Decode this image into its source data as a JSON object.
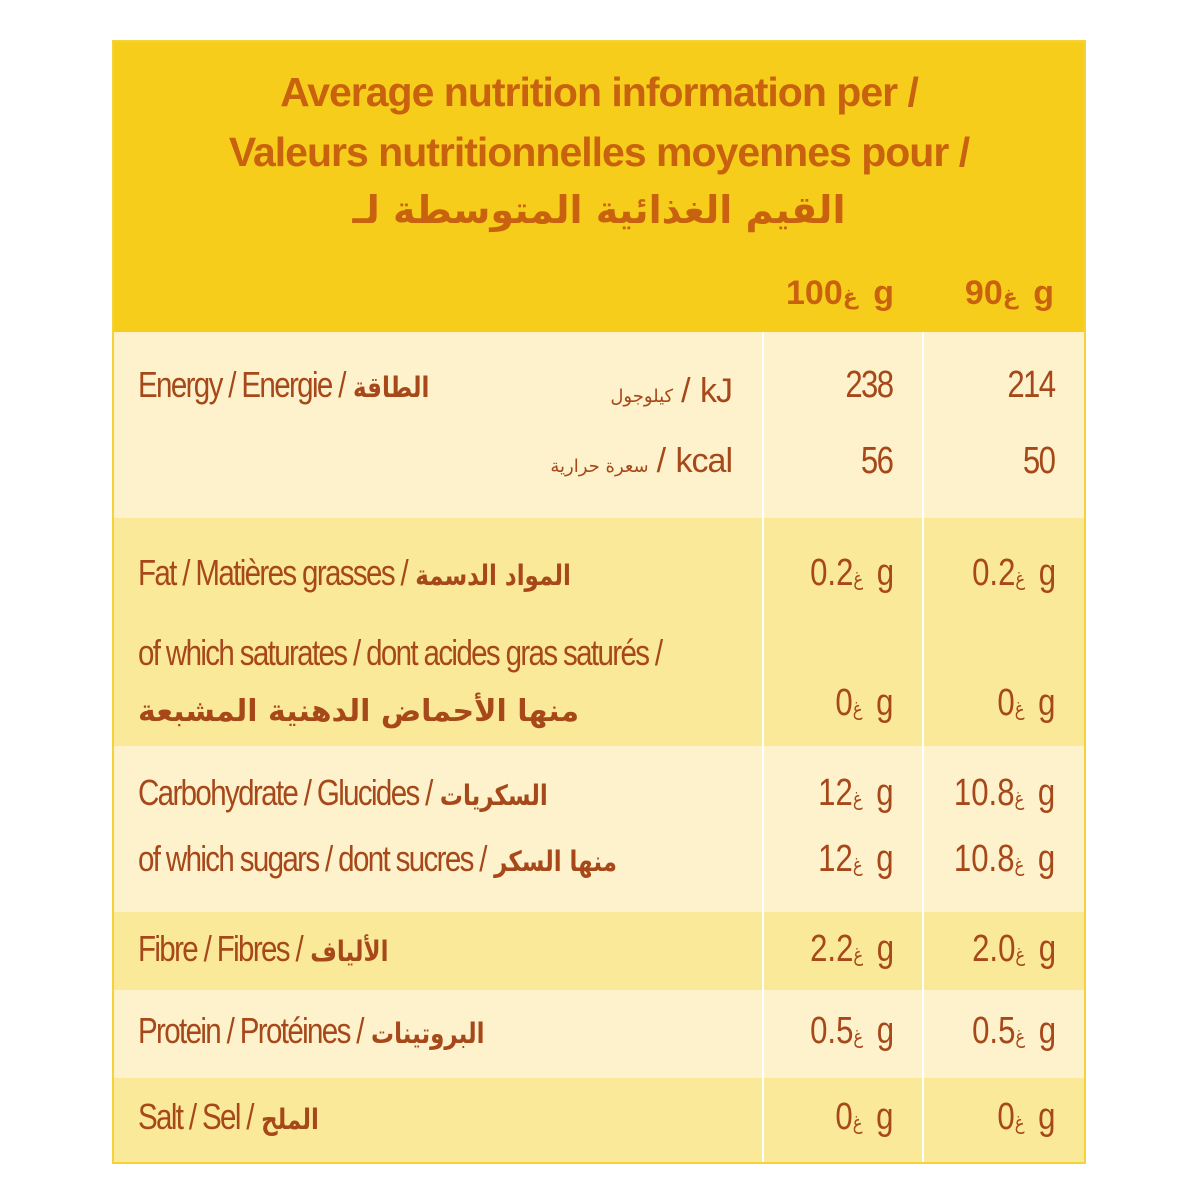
{
  "header": {
    "title_en": "Average nutrition information per /",
    "title_fr": "Valeurs nutritionnelles moyennes  pour /",
    "title_ar": "القيم الغذائية المتوسطة لـ",
    "col1": {
      "value": "100 g",
      "ar": "غ"
    },
    "col2": {
      "value": "90 g",
      "ar": "غ"
    }
  },
  "rows": {
    "energy": {
      "label": "Energy / Energie /",
      "label_ar": "الطاقة",
      "kj_unit": "/ kJ",
      "kj_unit_ar": "كيلوجول",
      "kcal_unit": "/ kcal",
      "kcal_unit_ar": "سعرة حرارية",
      "kj_100": "238",
      "kj_90": "214",
      "kcal_100": "56",
      "kcal_90": "50"
    },
    "fat": {
      "label": "Fat / Matières grasses /",
      "label_ar": "المواد الدسمة",
      "v100": "0.2 g",
      "v90": "0.2 g"
    },
    "saturates": {
      "label": "of which saturates / dont acides gras saturés /",
      "label_ar": "منها الأحماض الدهنية المشبعة",
      "v100": "0 g",
      "v90": "0 g"
    },
    "carbohydrate": {
      "label": "Carbohydrate / Glucides /",
      "label_ar": "السكريات",
      "v100": "12 g",
      "v90": "10.8 g"
    },
    "sugars": {
      "label": "of which sugars / dont sucres /",
      "label_ar": "منها السكر",
      "v100": "12 g",
      "v90": "10.8 g"
    },
    "fibre": {
      "label": "Fibre / Fibres /",
      "label_ar": "الألياف",
      "v100": "2.2 g",
      "v90": "2.0 g"
    },
    "protein": {
      "label": "Protein / Protéines /",
      "label_ar": "البروتينات",
      "v100": "0.5 g",
      "v90": "0.5 g"
    },
    "salt": {
      "label": "Salt / Sel /",
      "label_ar": "الملح",
      "v100": "0 g",
      "v90": "0 g"
    }
  },
  "unit_ar": "غ",
  "colors": {
    "header_bg": "#f7cd1b",
    "title_text": "#c8620f",
    "body_text": "#a6481a",
    "band_light": "#fdf2cb",
    "band_dark": "#fbe99a"
  }
}
